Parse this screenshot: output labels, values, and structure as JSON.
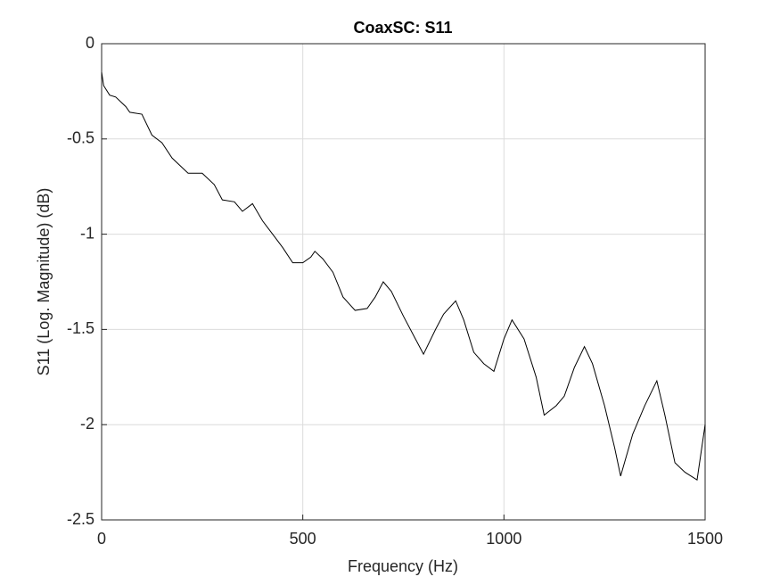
{
  "chart_data": {
    "type": "line",
    "title": "CoaxSC: S11",
    "x_label": "Frequency (Hz)",
    "y_label": "S11 (Log. Magnitude) (dB)",
    "x": [
      0,
      5,
      20,
      35,
      50,
      60,
      70,
      100,
      125,
      150,
      175,
      200,
      215,
      250,
      280,
      300,
      330,
      350,
      375,
      400,
      425,
      450,
      475,
      500,
      520,
      530,
      550,
      575,
      600,
      630,
      660,
      680,
      700,
      720,
      750,
      780,
      800,
      830,
      850,
      880,
      900,
      925,
      950,
      975,
      1000,
      1020,
      1050,
      1080,
      1100,
      1130,
      1150,
      1175,
      1200,
      1220,
      1250,
      1275,
      1290,
      1320,
      1350,
      1380,
      1400,
      1425,
      1450,
      1480,
      1500
    ],
    "series": [
      {
        "name": "S11",
        "color": "#000000",
        "values": [
          -0.15,
          -0.22,
          -0.27,
          -0.28,
          -0.31,
          -0.33,
          -0.36,
          -0.37,
          -0.48,
          -0.52,
          -0.6,
          -0.65,
          -0.68,
          -0.68,
          -0.74,
          -0.82,
          -0.83,
          -0.88,
          -0.84,
          -0.93,
          -1.0,
          -1.07,
          -1.15,
          -1.15,
          -1.12,
          -1.09,
          -1.13,
          -1.2,
          -1.33,
          -1.4,
          -1.39,
          -1.33,
          -1.25,
          -1.3,
          -1.43,
          -1.55,
          -1.63,
          -1.5,
          -1.42,
          -1.35,
          -1.45,
          -1.62,
          -1.68,
          -1.72,
          -1.55,
          -1.45,
          -1.55,
          -1.75,
          -1.95,
          -1.9,
          -1.85,
          -1.7,
          -1.59,
          -1.68,
          -1.9,
          -2.12,
          -2.27,
          -2.05,
          -1.9,
          -1.77,
          -1.95,
          -2.2,
          -2.25,
          -2.29,
          -2.0
        ]
      }
    ],
    "xlim": [
      0,
      1500
    ],
    "xticks": [
      0,
      500,
      1000,
      1500
    ],
    "ylim": [
      -2.5,
      0
    ],
    "yticks": [
      -2.5,
      -2,
      -1.5,
      -1,
      -0.5,
      0
    ],
    "grid": true
  }
}
